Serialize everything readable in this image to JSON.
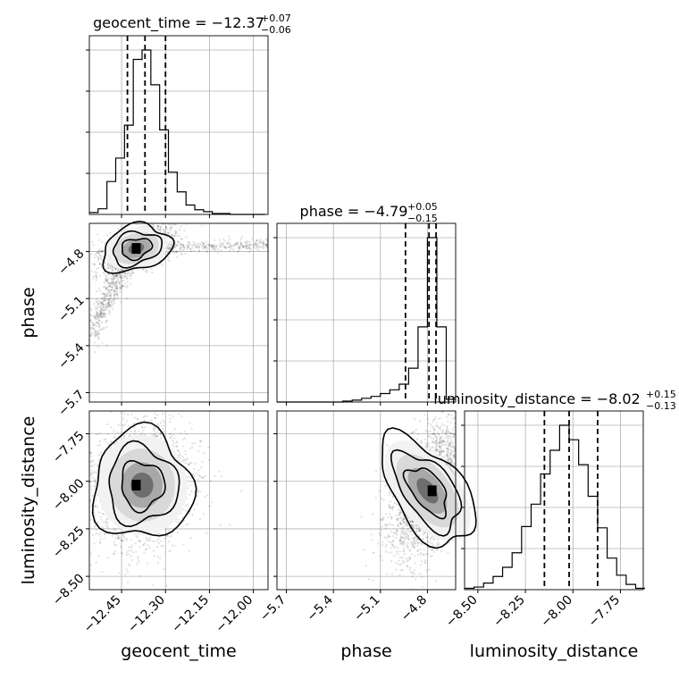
{
  "chart_data": {
    "type": "corner",
    "parameters": [
      "geocent_time",
      "phase",
      "luminosity_distance"
    ],
    "axis_labels": {
      "x": [
        "geocent_time",
        "phase",
        "luminosity_distance"
      ],
      "y": [
        "phase",
        "luminosity_distance"
      ]
    },
    "ranges": {
      "geocent_time": [
        -12.56,
        -11.95
      ],
      "phase": [
        -5.76,
        -4.62
      ],
      "luminosity_distance": [
        -8.57,
        -7.63
      ]
    },
    "ticks": {
      "geocent_time": [
        -12.45,
        -12.3,
        -12.15,
        -12.0
      ],
      "phase": [
        -5.7,
        -5.4,
        -5.1,
        -4.8
      ],
      "luminosity_distance": [
        -8.5,
        -8.25,
        -8.0,
        -7.75
      ]
    },
    "tick_labels": {
      "geocent_time": [
        "−12.45",
        "−12.30",
        "−12.15",
        "−12.00"
      ],
      "phase": [
        "−5.7",
        "−5.4",
        "−5.1",
        "−4.8"
      ],
      "luminosity_distance": [
        "−8.50",
        "−8.25",
        "−8.00",
        "−7.75"
      ]
    },
    "diagonal_titles": [
      {
        "name": "geocent_time",
        "median": "−12.37",
        "plus": "+0.07",
        "minus": "−0.06"
      },
      {
        "name": "phase",
        "median": "−4.79",
        "plus": "+0.05",
        "minus": "−0.15"
      },
      {
        "name": "luminosity_distance",
        "median": "−8.02",
        "plus": "+0.15",
        "minus": "−0.13"
      }
    ],
    "quantiles": {
      "geocent_time": [
        -12.43,
        -12.37,
        -12.3
      ],
      "phase": [
        -4.94,
        -4.79,
        -4.745
      ],
      "luminosity_distance": [
        -8.15,
        -8.02,
        -7.87
      ]
    },
    "histograms": {
      "geocent_time": {
        "bins": [
          -12.56,
          -12.53,
          -12.5,
          -12.47,
          -12.44,
          -12.41,
          -12.38,
          -12.35,
          -12.32,
          -12.29,
          -12.26,
          -12.23,
          -12.2,
          -12.17,
          -12.14,
          -12.11,
          -12.08,
          -12.05,
          -12.02,
          -11.99,
          -11.96
        ],
        "counts": [
          2,
          6,
          35,
          60,
          95,
          165,
          175,
          138,
          90,
          45,
          24,
          10,
          5,
          3,
          1,
          1,
          0,
          0,
          0,
          0
        ]
      },
      "phase": {
        "bins": [
          -5.76,
          -5.7,
          -5.64,
          -5.58,
          -5.52,
          -5.46,
          -5.4,
          -5.34,
          -5.28,
          -5.22,
          -5.16,
          -5.1,
          -5.04,
          -4.98,
          -4.92,
          -4.86,
          -4.8,
          -4.74,
          -4.68,
          -4.62
        ],
        "counts": [
          0,
          0,
          0,
          0,
          0,
          0,
          0,
          1,
          2,
          4,
          6,
          9,
          13,
          19,
          36,
          80,
          175,
          80,
          3
        ]
      },
      "luminosity_distance": {
        "bins": [
          -8.57,
          -8.52,
          -8.47,
          -8.42,
          -8.37,
          -8.32,
          -8.27,
          -8.22,
          -8.17,
          -8.12,
          -8.07,
          -8.02,
          -7.97,
          -7.92,
          -7.87,
          -7.82,
          -7.77,
          -7.72,
          -7.67,
          -7.62
        ],
        "counts": [
          1,
          2,
          5,
          10,
          17,
          28,
          48,
          65,
          88,
          106,
          125,
          114,
          95,
          71,
          47,
          24,
          11,
          4,
          1
        ]
      }
    },
    "pairs": [
      {
        "x": "geocent_time",
        "y": "phase",
        "center": [
          -12.4,
          -4.78
        ],
        "peak": [
          -12.4,
          -4.78
        ]
      },
      {
        "x": "geocent_time",
        "y": "luminosity_distance",
        "center": [
          -12.38,
          -8.02
        ],
        "peak": [
          -12.4,
          -8.02
        ]
      },
      {
        "x": "phase",
        "y": "luminosity_distance",
        "center": [
          -4.8,
          -8.05
        ],
        "peak": [
          -4.77,
          -8.05
        ]
      }
    ]
  }
}
